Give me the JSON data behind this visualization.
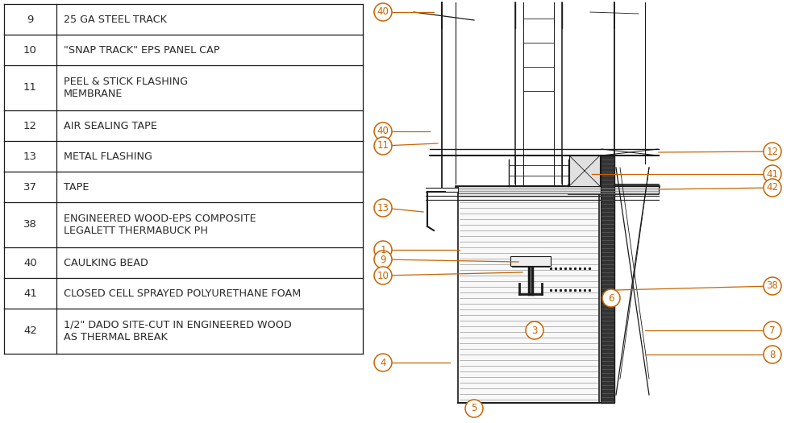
{
  "bg_color": "#ffffff",
  "table_items": [
    {
      "num": "9",
      "desc": "25 GA STEEL TRACK",
      "lines": 1
    },
    {
      "num": "10",
      "desc": "\"SNAP TRACK\" EPS PANEL CAP",
      "lines": 1
    },
    {
      "num": "11",
      "desc": "PEEL & STICK FLASHING\nMEMBRANE",
      "lines": 2
    },
    {
      "num": "12",
      "desc": "AIR SEALING TAPE",
      "lines": 1
    },
    {
      "num": "13",
      "desc": "METAL FLASHING",
      "lines": 1
    },
    {
      "num": "37",
      "desc": "TAPE",
      "lines": 1
    },
    {
      "num": "38",
      "desc": "ENGINEERED WOOD-EPS COMPOSITE\nLEGALETT THERMABUCK PH",
      "lines": 2
    },
    {
      "num": "40",
      "desc": "CAULKING BEAD",
      "lines": 1
    },
    {
      "num": "41",
      "desc": "CLOSED CELL SPRAYED POLYURETHANE FOAM",
      "lines": 1
    },
    {
      "num": "42",
      "desc": "1/2\" DADO SITE-CUT IN ENGINEERED WOOD\nAS THERMAL BREAK",
      "lines": 2
    }
  ],
  "text_color": "#2a2a2a",
  "orange_color": "#c86400",
  "line_color": "#1a1a1a",
  "gray_color": "#888888",
  "label_color": "#c86400"
}
